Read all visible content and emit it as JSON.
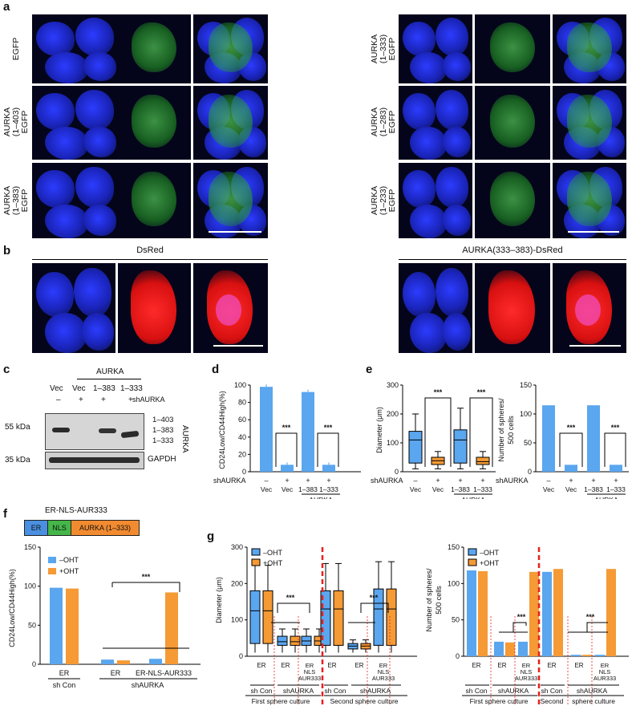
{
  "panel_letters": {
    "a": "a",
    "b": "b",
    "c": "c",
    "d": "d",
    "e": "e",
    "f": "f",
    "g": "g"
  },
  "panel_a": {
    "left_rows": [
      "EGFP",
      "AURKA\n(1–403)\nEGFP",
      "AURKA\n(1–383)\nEGFP"
    ],
    "right_rows": [
      "AURKA\n(1–333)\nEGFP",
      "AURKA\n(1–283)\nEGFP",
      "AURKA\n(1–233)\nEGFP"
    ]
  },
  "panel_b": {
    "left_title": "DsRed",
    "right_title": "AURKA(333–383)-DsRed"
  },
  "panel_c": {
    "group_label": "AURKA",
    "lanes": [
      "Vec",
      "Vec",
      "1–383",
      "1–333"
    ],
    "shaurka_label": "shAURKA",
    "shaurka_signs": [
      "–",
      "+",
      "+",
      "+"
    ],
    "kda_top": "55 kDa",
    "kda_bottom": "35 kDa",
    "band_labels": [
      "1–403",
      "1–383",
      "1–333"
    ],
    "side_label": "AURKA",
    "loading_label": "GAPDH"
  },
  "panel_d": {
    "ylabel": "CD24Low/CD44High(%)",
    "ticks": [
      "0",
      "20",
      "40",
      "60",
      "80",
      "100"
    ],
    "bars": [
      98,
      8,
      92,
      8
    ],
    "signs": [
      "–",
      "+",
      "+",
      "+"
    ],
    "lanes": [
      "Vec",
      "Vec",
      "1–383",
      "1–333"
    ],
    "sig": "***",
    "group_label": "AURKA",
    "shaurka_label": "shAURKA"
  },
  "panel_e": {
    "left_ylabel": "Diameter (μm)",
    "left_ticks": [
      "0",
      "100",
      "200",
      "300"
    ],
    "right_ylabel": "Number of spheres/\n500 cells",
    "right_ticks": [
      "0",
      "50",
      "100",
      "150"
    ],
    "bars": [
      115,
      12,
      115,
      12
    ],
    "signs": [
      "–",
      "+",
      "+",
      "+"
    ],
    "lanes": [
      "Vec",
      "Vec",
      "1–383",
      "1–333"
    ],
    "sig": "***",
    "group_label": "AURKA",
    "shaurka_label": "shAURKA"
  },
  "panel_f": {
    "construct_title": "ER-NLS-AUR333",
    "construct_parts": [
      "ER",
      "NLS",
      "AURKA (1–333)"
    ],
    "construct_colors": [
      "#4a8fe0",
      "#45b649",
      "#f28b30"
    ],
    "ylabel": "CD24Low/CD44High(%)",
    "ticks": [
      "0",
      "50",
      "100",
      "150"
    ],
    "legend": [
      "–OHT",
      "+OHT"
    ],
    "values_minus": [
      98,
      6,
      7
    ],
    "values_plus": [
      97,
      5,
      92
    ],
    "x_labels": [
      "ER",
      "ER",
      "ER-NLS-AUR333"
    ],
    "group_labels": [
      "sh Con",
      "shAURKA"
    ],
    "sig": "***"
  },
  "panel_g": {
    "left_ylabel": "Diameter (μm)",
    "left_ticks": [
      "0",
      "100",
      "200",
      "300"
    ],
    "right_ylabel": "Number of spheres/\n500 cells",
    "right_ticks": [
      "0",
      "50",
      "100",
      "150"
    ],
    "legend": [
      "–OHT",
      "+OHT"
    ],
    "bars_minus": [
      118,
      20,
      20,
      116,
      2,
      2
    ],
    "bars_plus": [
      117,
      19,
      116,
      120,
      2,
      120
    ],
    "x_labels": [
      "ER",
      "ER",
      "ER\nNLS\nAUR333",
      "ER",
      "ER",
      "ER\nNLS\nAUR333"
    ],
    "group_labels": [
      "sh Con",
      "shAURKA",
      "sh Con",
      "shAURKA"
    ],
    "culture_labels_left": [
      "First sphere culture",
      "Second sphere culture"
    ],
    "culture_labels_right": [
      "First sphere culture",
      "Second",
      "sphere culture"
    ],
    "sig": "***"
  },
  "colors": {
    "blue": "#5aa6ef",
    "orange": "#f59a35",
    "green": "#2fd62f",
    "red": "#ff1a1a",
    "dapi": "#1b2ce0"
  }
}
